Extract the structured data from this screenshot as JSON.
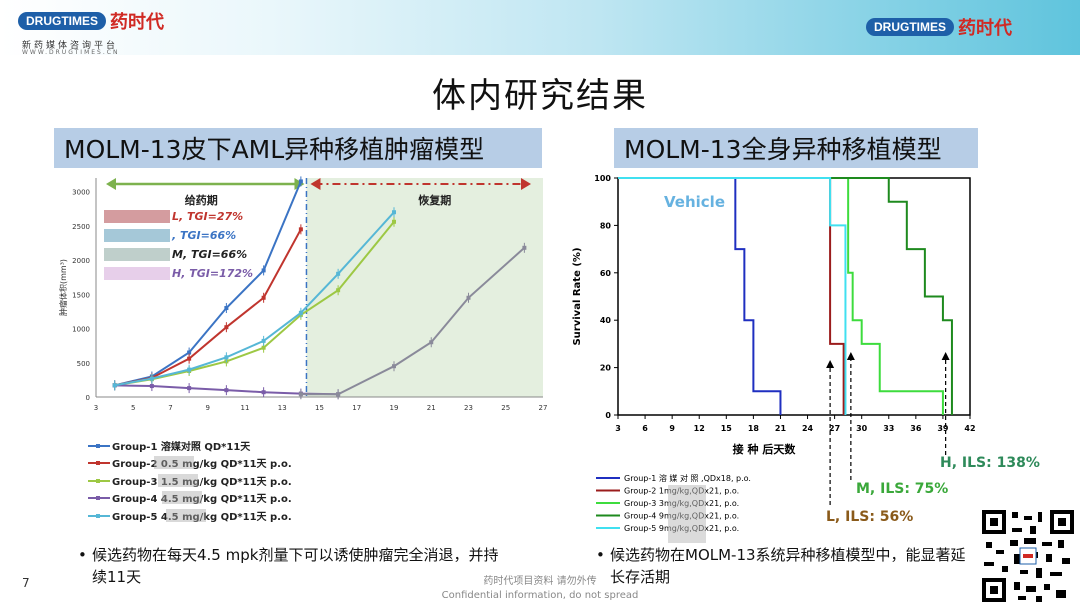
{
  "header": {
    "logo_en_a": "DRUG",
    "logo_en_b": "TIMES",
    "logo_cn": "药时代",
    "tagline": "新药媒体咨询平台",
    "url": "WWW.DRUGTIMES.CN"
  },
  "slide": {
    "title": "体内研究结果",
    "page_number": "7",
    "confidential_cn": "药时代项目资料 请勿外传",
    "confidential_en": "Confidential information, do not spread"
  },
  "left_panel": {
    "title": "MOLM-13皮下AML异种移植肿瘤模型",
    "bullet": "候选药物在每天4.5 mpk剂量下可以诱使肿瘤完全消退，并持续11天"
  },
  "right_panel": {
    "title": "MOLM-13全身异种移植模型",
    "bullet": "候选药物在MOLM-13系统异种移植模型中，能显著延长存活期"
  },
  "colors": {
    "blue": "#3b74c4",
    "red": "#c0352e",
    "green": "#9dc844",
    "purple": "#7a5ca8",
    "cyan": "#56b7d6",
    "gray": "#8a8a9a",
    "recovery_bg": "#e4efdf"
  },
  "chart_data": [
    {
      "type": "line",
      "ylabel": "肿瘤体积(mm³)",
      "ylim": [
        0,
        3200
      ],
      "xlim": [
        3,
        27
      ],
      "x_ticks": [
        3,
        5,
        7,
        9,
        11,
        13,
        15,
        17,
        19,
        21,
        23,
        25,
        27
      ],
      "y_ticks": [
        0,
        500,
        1000,
        1500,
        2000,
        2500,
        3000
      ],
      "phase_labels": [
        "给药期",
        "恢复期"
      ],
      "phase_boundary_x": 14.3,
      "annotations": [
        "L, TGI=27%",
        ", TGI=66%",
        "M, TGI=66%",
        "H, TGI=172%"
      ],
      "series": [
        {
          "name": "Group-1 溶媒对照 QD*11天",
          "color": "#3b74c4",
          "x": [
            4,
            6,
            8,
            10,
            12,
            14
          ],
          "y": [
            170,
            300,
            650,
            1300,
            1850,
            3150
          ]
        },
        {
          "name": "Group-2 0.5 mg/kg QD*11天 p.o.",
          "color": "#c0352e",
          "x": [
            4,
            6,
            8,
            10,
            12,
            14
          ],
          "y": [
            170,
            280,
            560,
            1020,
            1450,
            2450
          ]
        },
        {
          "name": "Group-3 1.5 mg/kg QD*11天 p.o.",
          "color": "#9dc844",
          "x": [
            4,
            6,
            8,
            10,
            12,
            14,
            16,
            19
          ],
          "y": [
            170,
            260,
            380,
            520,
            720,
            1200,
            1560,
            2560
          ]
        },
        {
          "name": "Group-4 4.5 mg/kg QD*11天 p.o.",
          "color": "#7a5ca8",
          "x": [
            4,
            6,
            8,
            10,
            12,
            14,
            16
          ],
          "y": [
            170,
            160,
            130,
            100,
            70,
            50,
            40
          ]
        },
        {
          "name": "Group-5 4.5 mg/kg QD*11天 p.o.",
          "color": "#56b7d6",
          "x": [
            4,
            6,
            8,
            10,
            12,
            14,
            16,
            19
          ],
          "y": [
            170,
            270,
            400,
            580,
            820,
            1230,
            1800,
            2700
          ]
        },
        {
          "name": "",
          "color": "#8a8a9a",
          "x": [
            14,
            16,
            19,
            21,
            23,
            26
          ],
          "y": [
            40,
            40,
            450,
            800,
            1450,
            2180
          ]
        }
      ]
    },
    {
      "type": "line",
      "xlabel": "接 种 后天数",
      "ylabel": "Survival Rate (%)",
      "ylim": [
        0,
        100
      ],
      "xlim": [
        3,
        42
      ],
      "x_ticks": [
        3,
        6,
        9,
        12,
        15,
        18,
        21,
        24,
        27,
        30,
        33,
        36,
        39,
        42
      ],
      "y_ticks": [
        0,
        20,
        40,
        60,
        80,
        100
      ],
      "annotations": [
        "Vehicle",
        "H, ILS: 138%",
        "M, ILS: 75%",
        "L, ILS: 56%"
      ],
      "series": [
        {
          "name": "Group-1 溶 媒 对 照 ,QDx18, p.o.",
          "color": "#1f2fc0",
          "x": [
            3,
            16,
            16,
            17,
            17,
            18,
            18,
            21,
            21
          ],
          "y": [
            100,
            100,
            70,
            70,
            40,
            40,
            10,
            10,
            0
          ]
        },
        {
          "name": "Group-2 1mg/kg,QDx21, p.o.",
          "color": "#9b1c1c",
          "x": [
            3,
            26.5,
            26.5,
            28,
            28
          ],
          "y": [
            100,
            100,
            30,
            30,
            0
          ]
        },
        {
          "name": "Group-3 3mg/kg,QDx21, p.o.",
          "color": "#3ddc3d",
          "x": [
            3,
            28.5,
            28.5,
            29,
            29,
            30,
            30,
            32,
            32,
            39,
            39
          ],
          "y": [
            100,
            100,
            60,
            60,
            40,
            40,
            30,
            30,
            10,
            10,
            0
          ]
        },
        {
          "name": "Group-4 9mg/kg,QDx21, p.o.",
          "color": "#1e8a1e",
          "x": [
            3,
            33,
            33,
            35,
            35,
            37,
            37,
            39,
            39,
            40,
            40
          ],
          "y": [
            100,
            100,
            90,
            90,
            70,
            70,
            50,
            50,
            40,
            40,
            0
          ]
        },
        {
          "name": "Group-5 9mg/kg,QDx21, p.o.",
          "color": "#40e0f0",
          "x": [
            3,
            26.5,
            26.5,
            28.2,
            28.2
          ],
          "y": [
            100,
            100,
            80,
            80,
            0
          ]
        }
      ]
    }
  ]
}
